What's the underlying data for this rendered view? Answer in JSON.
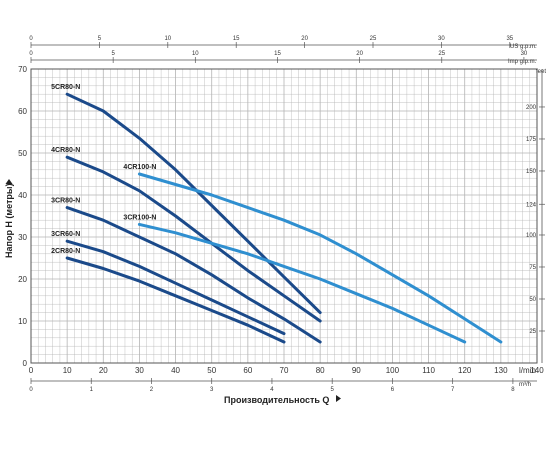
{
  "chart_data": {
    "type": "line",
    "grid": true,
    "xlabel": "Производительность Q",
    "ylabel": "Напор H (метры)",
    "x_unit_label": "l/min",
    "x2_unit_label": "m³/h",
    "top_axis_unit_label": "US g.p.m.",
    "top2_axis_unit_label": "Imp g.p.m.",
    "right_axis_unit_label": "feet",
    "xlim": [
      0,
      140
    ],
    "ylim": [
      0,
      70
    ],
    "x_ticks": [
      "0",
      "10",
      "20",
      "30",
      "40",
      "50",
      "60",
      "70",
      "80",
      "90",
      "100",
      "110",
      "120",
      "130",
      "140"
    ],
    "y_ticks": [
      "0",
      "10",
      "20",
      "30",
      "40",
      "50",
      "60",
      "70"
    ],
    "m3h_ticks": [
      "0",
      "1",
      "2",
      "3",
      "4",
      "5",
      "6",
      "7",
      "8"
    ],
    "us_gpm_ticks": [
      "0",
      "5",
      "10",
      "15",
      "20",
      "25",
      "30",
      "35"
    ],
    "imp_gpm_ticks": [
      "0",
      "5",
      "10",
      "15",
      "20",
      "25",
      "30"
    ],
    "feet_ticks": [
      "25",
      "50",
      "75",
      "100",
      "124",
      "150",
      "175",
      "200"
    ],
    "colors": {
      "dark_series": "#1b4a8a",
      "light_series": "#2f8fd0",
      "grid": "#b4b4b4",
      "axis": "#555555"
    },
    "series": [
      {
        "name": "5CR80-N",
        "color": "#1b4a8a",
        "label_x": 10,
        "label_y": 64,
        "x": [
          10,
          20,
          30,
          40,
          50,
          60,
          70,
          80
        ],
        "y": [
          64,
          60,
          53.5,
          46,
          37.5,
          29,
          20.5,
          12
        ]
      },
      {
        "name": "4CR80-N",
        "color": "#1b4a8a",
        "label_x": 10,
        "label_y": 49,
        "x": [
          10,
          20,
          30,
          40,
          50,
          60,
          70,
          80
        ],
        "y": [
          49,
          45.5,
          41,
          35,
          28.5,
          22,
          16,
          10
        ]
      },
      {
        "name": "3CR80-N",
        "color": "#1b4a8a",
        "label_x": 10,
        "label_y": 37,
        "x": [
          10,
          20,
          30,
          40,
          50,
          60,
          70,
          80
        ],
        "y": [
          37,
          34,
          30,
          26,
          21,
          15.5,
          10.5,
          5
        ]
      },
      {
        "name": "3CR60-N",
        "color": "#1b4a8a",
        "label_x": 10,
        "label_y": 29,
        "x": [
          10,
          20,
          30,
          40,
          50,
          60,
          70
        ],
        "y": [
          29,
          26.5,
          23,
          19,
          15,
          11,
          7
        ]
      },
      {
        "name": "2CR80-N",
        "color": "#1b4a8a",
        "label_x": 10,
        "label_y": 25,
        "x": [
          10,
          20,
          30,
          40,
          50,
          60,
          70
        ],
        "y": [
          25,
          22.5,
          19.5,
          16,
          12.5,
          9,
          5
        ]
      },
      {
        "name": "4CR100-N",
        "color": "#2f8fd0",
        "label_x": 30,
        "label_y": 45,
        "x": [
          30,
          40,
          50,
          60,
          70,
          80,
          90,
          100,
          110,
          120,
          130
        ],
        "y": [
          45,
          42.5,
          40,
          37,
          34,
          30.5,
          26,
          21,
          16,
          10.5,
          5
        ]
      },
      {
        "name": "3CR100-N",
        "color": "#2f8fd0",
        "label_x": 30,
        "label_y": 33,
        "x": [
          30,
          40,
          50,
          60,
          70,
          80,
          90,
          100,
          110,
          120
        ],
        "y": [
          33,
          31,
          28.5,
          26,
          23,
          20,
          16.5,
          13,
          9,
          5
        ]
      }
    ]
  }
}
